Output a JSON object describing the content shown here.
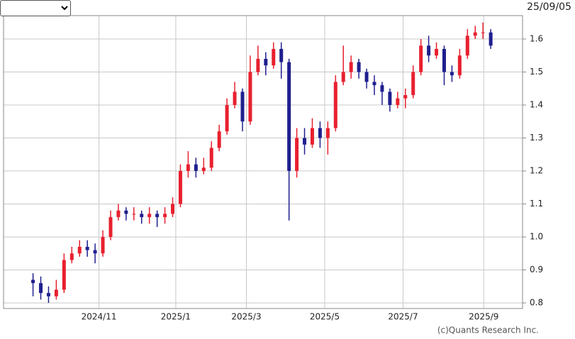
{
  "chart_data": {
    "type": "candlestick",
    "date": "25/09/05",
    "credit": "(c)Quants Research Inc.",
    "up_color": "#e8202f",
    "down_color": "#1f1f8f",
    "grid": true,
    "open": [
      0.87,
      0.86,
      0.83,
      0.82,
      0.84,
      0.93,
      0.95,
      0.97,
      0.96,
      0.95,
      1.0,
      1.06,
      1.08,
      1.07,
      1.07,
      1.06,
      1.07,
      1.06,
      1.07,
      1.1,
      1.2,
      1.22,
      1.2,
      1.21,
      1.27,
      1.32,
      1.4,
      1.44,
      1.35,
      1.5,
      1.54,
      1.52,
      1.57,
      1.53,
      1.2,
      1.3,
      1.28,
      1.33,
      1.3,
      1.33,
      1.47,
      1.5,
      1.53,
      1.5,
      1.47,
      1.46,
      1.44,
      1.4,
      1.42,
      1.43,
      1.5,
      1.58,
      1.55,
      1.57,
      1.5,
      1.49,
      1.55,
      1.61,
      1.62,
      1.62
    ],
    "high": [
      0.89,
      0.88,
      0.85,
      0.87,
      0.95,
      0.97,
      0.99,
      0.99,
      0.98,
      1.02,
      1.08,
      1.1,
      1.09,
      1.09,
      1.08,
      1.09,
      1.08,
      1.09,
      1.12,
      1.22,
      1.26,
      1.24,
      1.24,
      1.29,
      1.34,
      1.42,
      1.47,
      1.45,
      1.55,
      1.58,
      1.56,
      1.59,
      1.59,
      1.54,
      1.33,
      1.33,
      1.36,
      1.35,
      1.35,
      1.49,
      1.58,
      1.55,
      1.54,
      1.51,
      1.49,
      1.47,
      1.45,
      1.44,
      1.45,
      1.52,
      1.6,
      1.61,
      1.59,
      1.58,
      1.52,
      1.57,
      1.63,
      1.64,
      1.65,
      1.63
    ],
    "low": [
      0.82,
      0.81,
      0.8,
      0.81,
      0.83,
      0.92,
      0.94,
      0.94,
      0.92,
      0.94,
      0.99,
      1.05,
      1.05,
      1.05,
      1.04,
      1.04,
      1.03,
      1.04,
      1.06,
      1.09,
      1.18,
      1.18,
      1.19,
      1.2,
      1.26,
      1.31,
      1.39,
      1.32,
      1.34,
      1.49,
      1.49,
      1.51,
      1.48,
      1.05,
      1.18,
      1.25,
      1.27,
      1.27,
      1.25,
      1.32,
      1.46,
      1.48,
      1.48,
      1.45,
      1.43,
      1.4,
      1.38,
      1.39,
      1.39,
      1.42,
      1.49,
      1.53,
      1.54,
      1.46,
      1.47,
      1.48,
      1.54,
      1.6,
      1.6,
      1.57
    ],
    "close": [
      0.86,
      0.83,
      0.82,
      0.84,
      0.93,
      0.95,
      0.97,
      0.96,
      0.95,
      1.0,
      1.06,
      1.08,
      1.07,
      1.07,
      1.06,
      1.07,
      1.06,
      1.07,
      1.1,
      1.2,
      1.22,
      1.2,
      1.21,
      1.27,
      1.32,
      1.4,
      1.44,
      1.35,
      1.5,
      1.54,
      1.52,
      1.57,
      1.53,
      1.2,
      1.3,
      1.28,
      1.33,
      1.3,
      1.33,
      1.47,
      1.5,
      1.53,
      1.5,
      1.47,
      1.46,
      1.44,
      1.4,
      1.42,
      1.43,
      1.5,
      1.58,
      1.55,
      1.57,
      1.5,
      1.49,
      1.55,
      1.61,
      1.62,
      1.62,
      1.58
    ],
    "xlim": [
      -3.8,
      63.1
    ],
    "xticks": [
      {
        "value": 8.5,
        "label": "2024/11"
      },
      {
        "value": 18.4,
        "label": "2025/1"
      },
      {
        "value": 27.5,
        "label": "2025/3"
      },
      {
        "value": 37.6,
        "label": "2025/5"
      },
      {
        "value": 47.7,
        "label": "2025/7"
      },
      {
        "value": 58.1,
        "label": "2025/9"
      }
    ],
    "ylim": [
      0.783,
      1.671
    ],
    "yticks": [
      0.8,
      0.9,
      {
        "value": 1,
        "label": "1.0"
      },
      1.1,
      1.2,
      1.3,
      1.4,
      1.5,
      1.6
    ]
  }
}
